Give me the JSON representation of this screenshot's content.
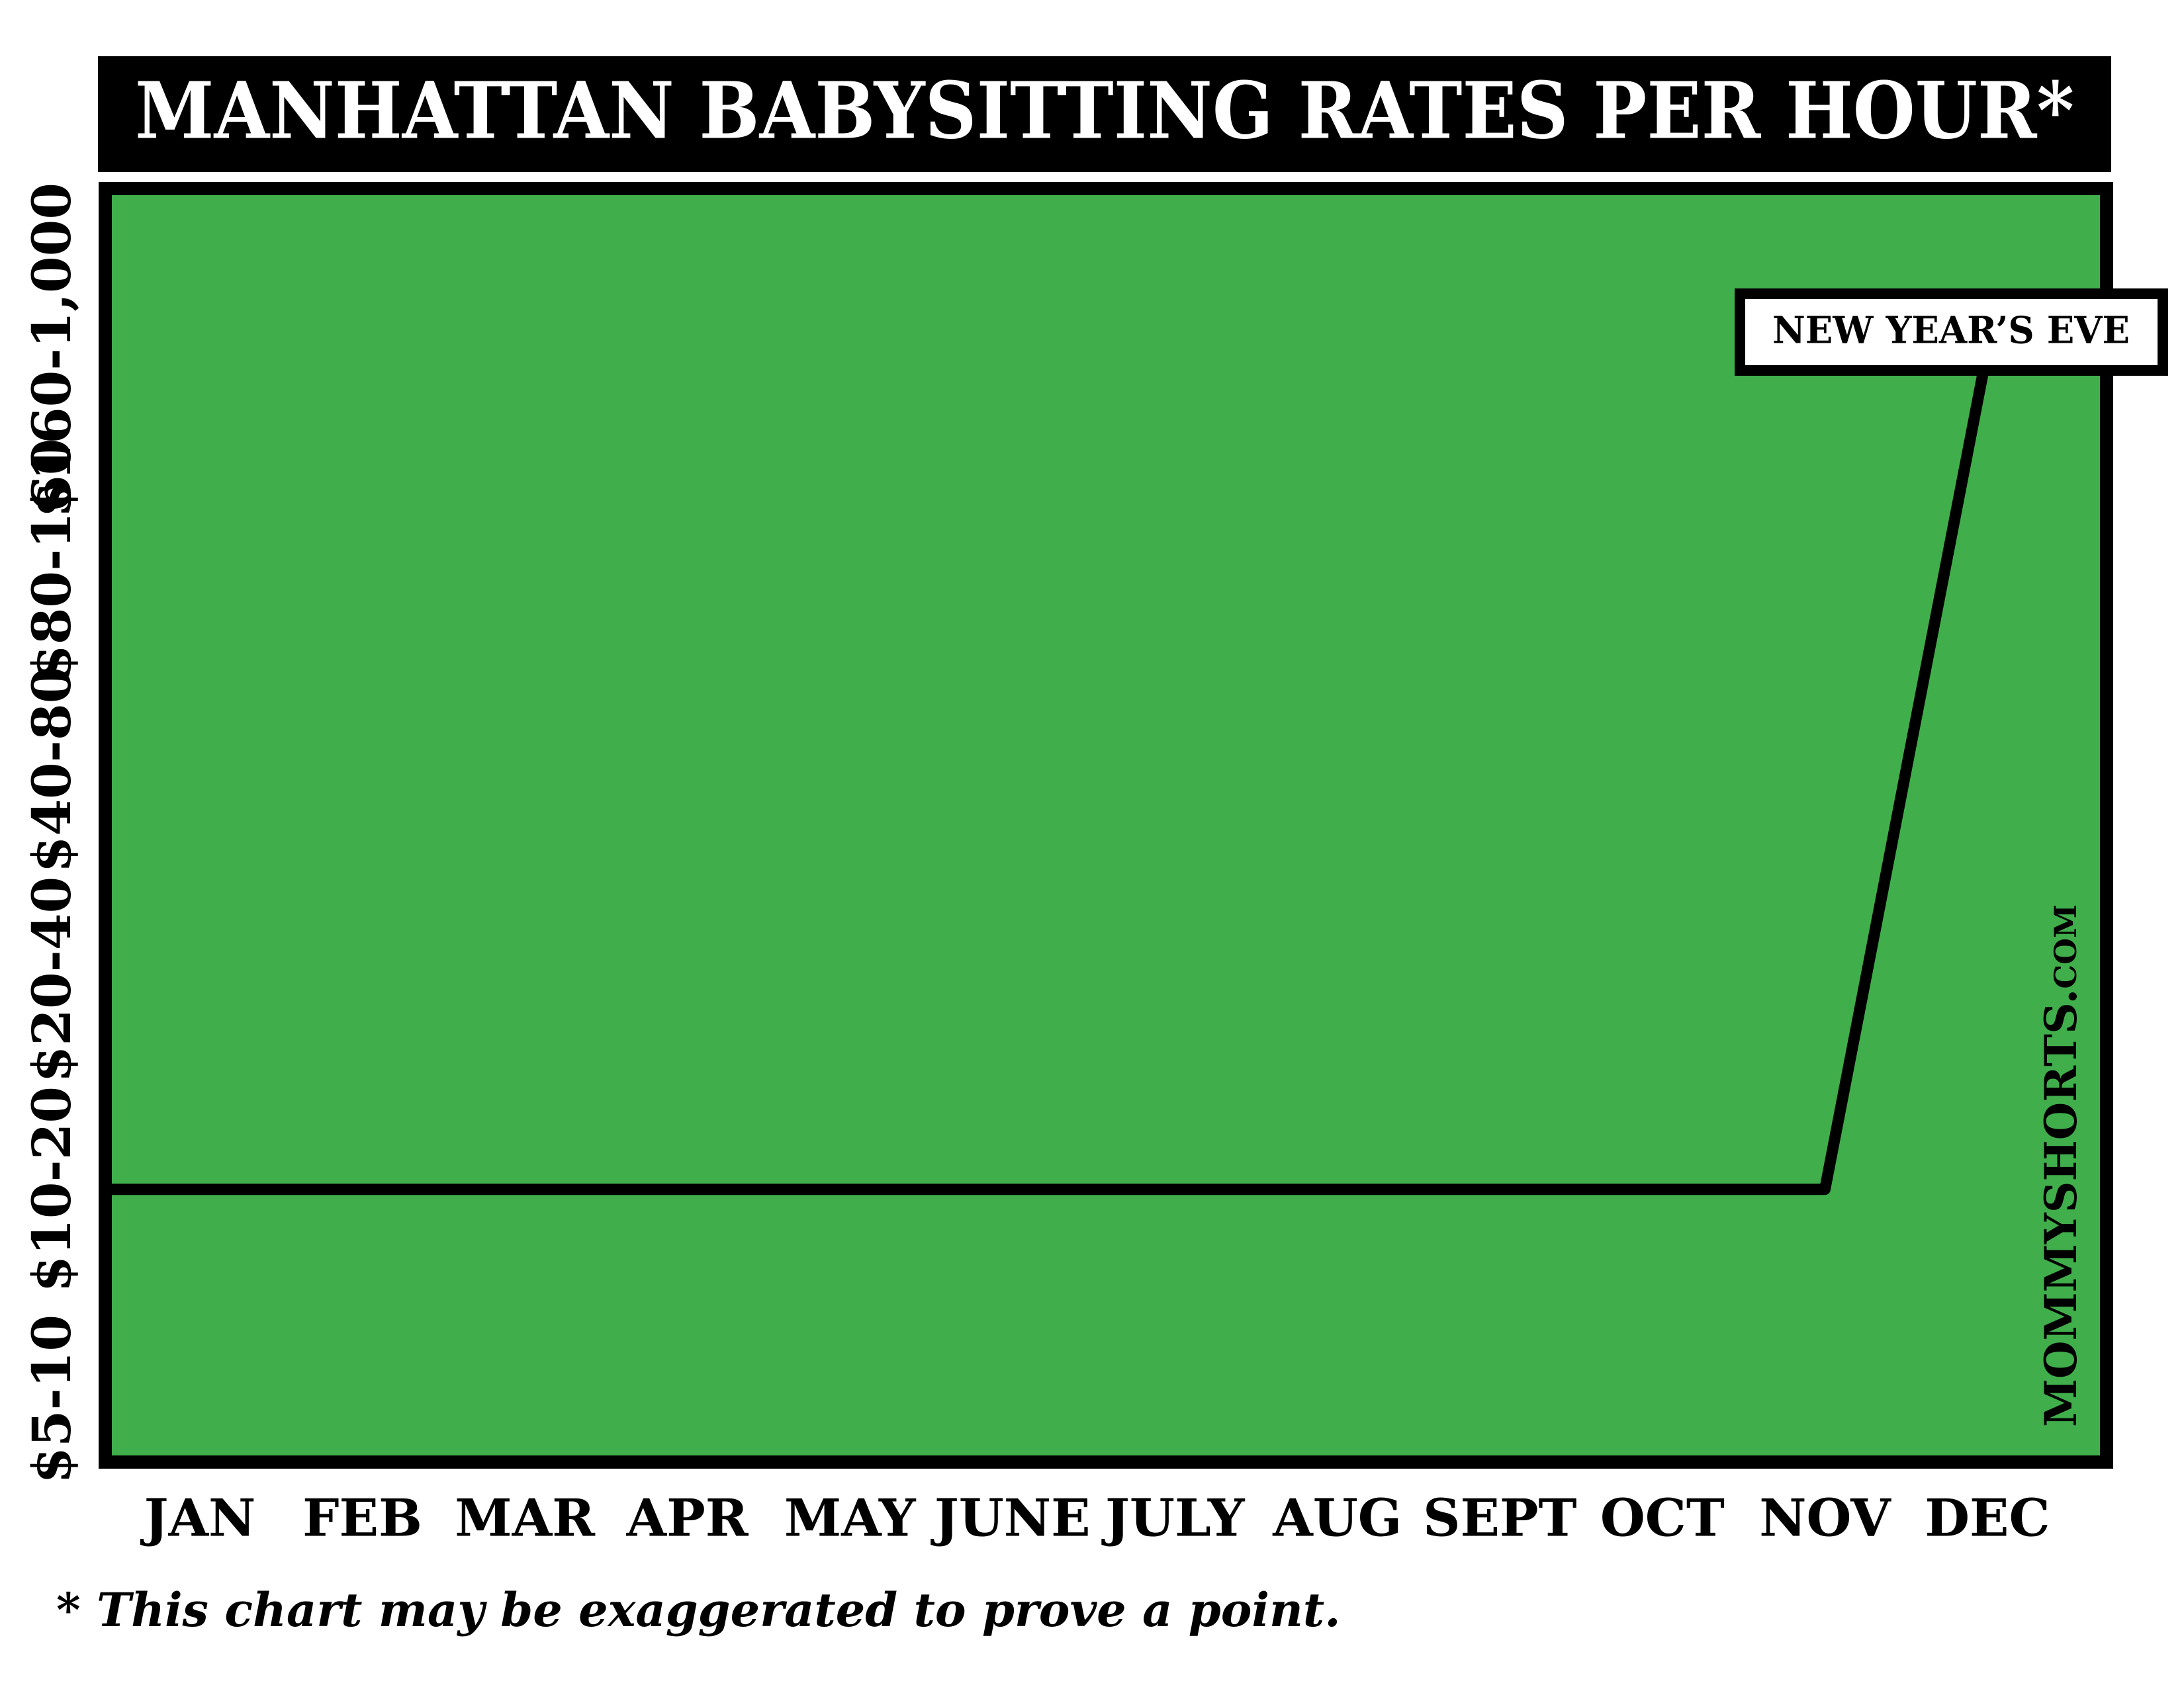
{
  "chart_data": {
    "type": "line",
    "title": "MANHATTAN BABYSITTING RATES PER HOUR*",
    "categories": [
      "JAN",
      "FEB",
      "MAR",
      "APR",
      "MAY",
      "JUNE",
      "JULY",
      "AUG",
      "SEPT",
      "OCT",
      "NOV",
      "DEC"
    ],
    "series": [
      {
        "name": "Rate",
        "color": "#000000",
        "values": [
          2,
          2,
          2,
          2,
          2,
          2,
          2,
          2,
          2,
          2,
          2,
          6
        ]
      }
    ],
    "ylim": [
      0.7,
      6.77
    ],
    "yticks": [
      {
        "value": 1,
        "label": "$5-10"
      },
      {
        "value": 2,
        "label": "$10-20"
      },
      {
        "value": 3,
        "label": "$20-40"
      },
      {
        "value": 4,
        "label": "$40-80"
      },
      {
        "value": 5,
        "label": "$80-160"
      },
      {
        "value": 6,
        "label": "$160-1,000"
      }
    ],
    "background_color": "#41ae4c",
    "annotation": "NEW YEAR’S EVE",
    "watermark": "MOMMYSHORTS.com",
    "footnote": "* This chart may be exaggerated to prove a point."
  }
}
